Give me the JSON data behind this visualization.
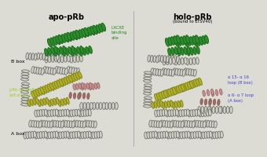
{
  "title_left": "apo-pRb",
  "title_right": "holo-pRb",
  "subtitle_right": "(bound to LTSV40)",
  "label_lxcxe": "LXCXE\nbinding\nsite",
  "label_lxcxe_color": "#228B22",
  "label_b_box_left": "B box",
  "label_a_box_left": "A box",
  "label_prb_ab": "pRb AB cleft\n(α8,α9,α11)",
  "label_prb_ab_color": "#9acd32",
  "label_a15_a16": "α 15- α 16\nloop (B box)",
  "label_a6_a7": "α 6- α 7 loop\n(A box)",
  "label_right_color": "#4040cc",
  "bg_color": "#dcdcd4",
  "title_color": "#000000",
  "green_color": "#2e8b2e",
  "yellow_color": "#b0b030",
  "pink_color": "#c89090",
  "mauve_color": "#a06868",
  "white_color": "#d0d0c4",
  "outline_color": "#606060"
}
